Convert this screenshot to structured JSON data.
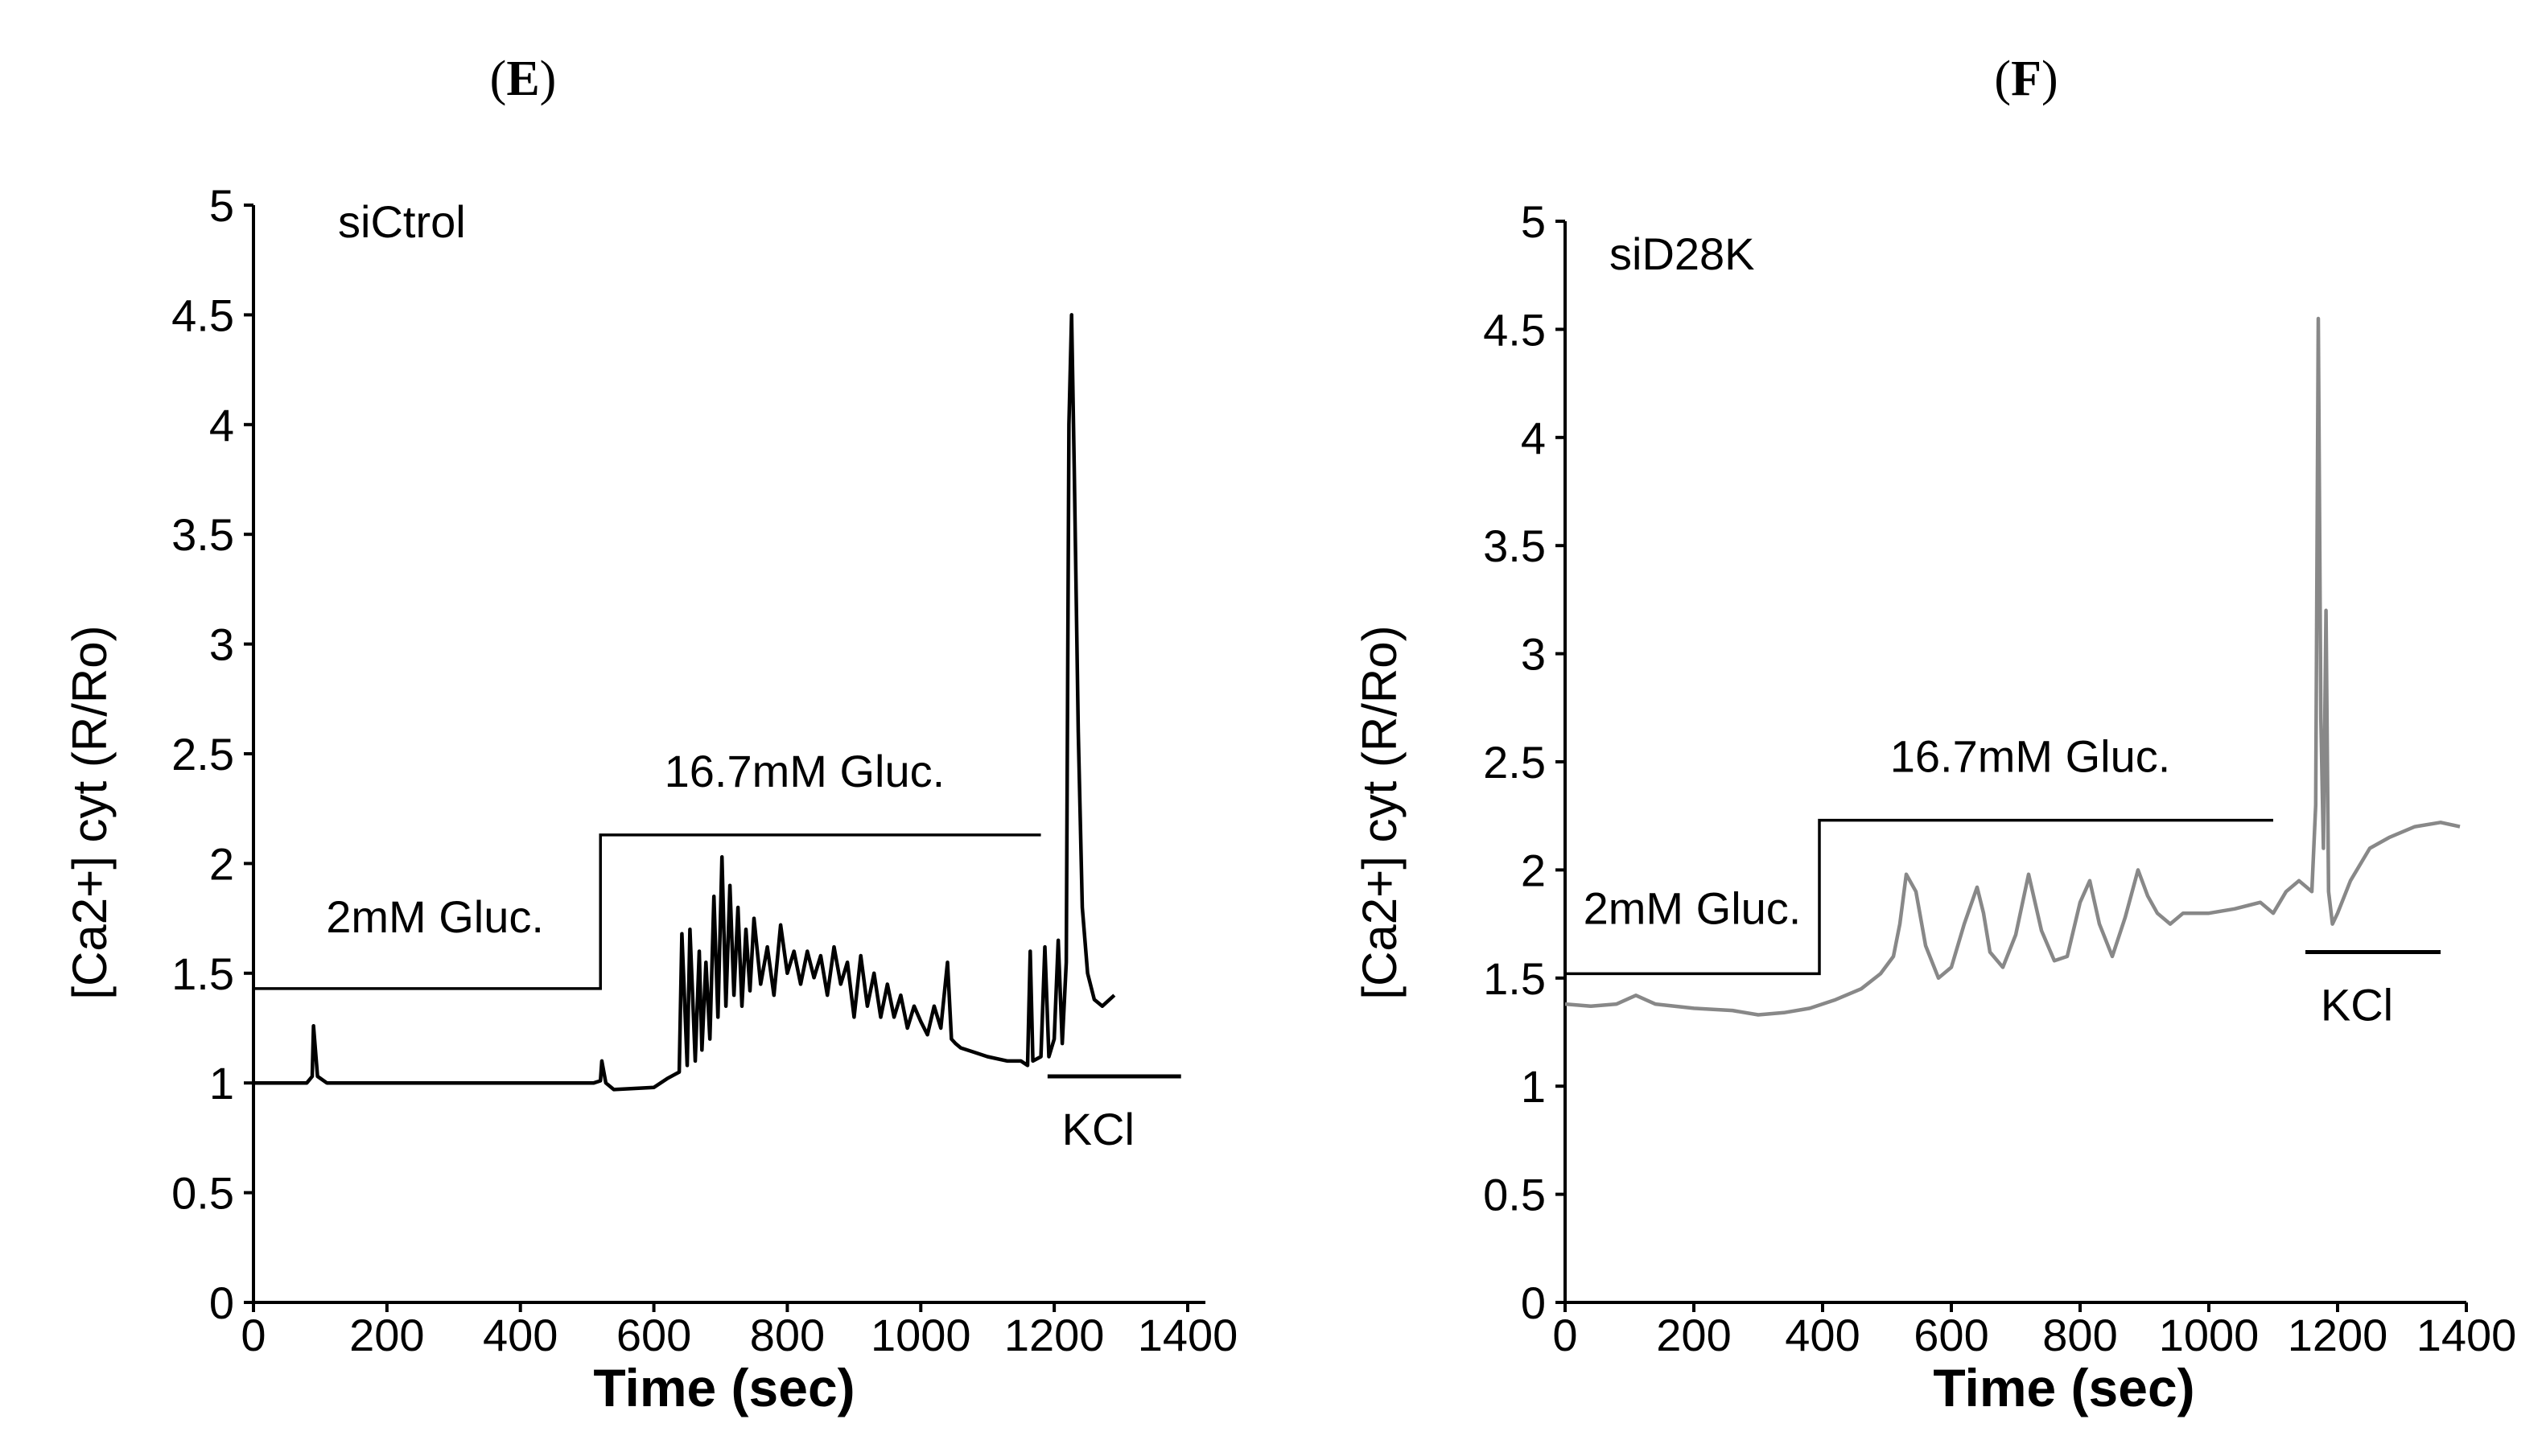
{
  "chart_data": [
    {
      "panel_label": "E",
      "type": "line",
      "title": "siCtrol",
      "xlabel": "Time (sec)",
      "ylabel": "[Ca2+] cyt (R/Ro)",
      "xlim": [
        0,
        1400
      ],
      "ylim": [
        0,
        5
      ],
      "x_ticks": [
        0,
        200,
        400,
        600,
        800,
        1000,
        1200,
        1400
      ],
      "x_tick_labels": [
        "0",
        "200",
        "400",
        "600",
        "800",
        "1000",
        "1200",
        "1400"
      ],
      "y_ticks": [
        0,
        0.5,
        1,
        1.5,
        2,
        2.5,
        3,
        3.5,
        4,
        4.5,
        5
      ],
      "y_tick_labels": [
        "0",
        "0.5",
        "1",
        "1.5",
        "2",
        "2.5",
        "3",
        "3.5",
        "4",
        "4.5",
        "5"
      ],
      "line_color": "#000000",
      "series": [
        {
          "name": "siCtrol",
          "x": [
            0,
            80,
            88,
            90,
            96,
            110,
            300,
            510,
            520,
            522,
            528,
            540,
            600,
            620,
            638,
            642,
            650,
            654,
            662,
            668,
            672,
            678,
            684,
            690,
            696,
            702,
            708,
            714,
            720,
            726,
            732,
            738,
            744,
            750,
            760,
            770,
            780,
            790,
            800,
            810,
            820,
            830,
            840,
            850,
            860,
            870,
            880,
            890,
            900,
            910,
            920,
            930,
            940,
            950,
            960,
            970,
            980,
            990,
            1000,
            1010,
            1020,
            1030,
            1040,
            1046,
            1052,
            1060,
            1080,
            1100,
            1130,
            1150,
            1160,
            1164,
            1168,
            1180,
            1186,
            1192,
            1200,
            1206,
            1212,
            1218,
            1222,
            1226,
            1230,
            1236,
            1242,
            1250,
            1260,
            1272,
            1290
          ],
          "values": [
            1.0,
            1.0,
            1.03,
            1.26,
            1.03,
            1.0,
            1.0,
            1.0,
            1.01,
            1.1,
            1.0,
            0.97,
            0.98,
            1.02,
            1.05,
            1.68,
            1.08,
            1.7,
            1.1,
            1.6,
            1.15,
            1.55,
            1.2,
            1.85,
            1.3,
            2.03,
            1.35,
            1.9,
            1.4,
            1.8,
            1.35,
            1.7,
            1.42,
            1.75,
            1.45,
            1.62,
            1.4,
            1.72,
            1.5,
            1.6,
            1.45,
            1.6,
            1.48,
            1.58,
            1.4,
            1.62,
            1.45,
            1.55,
            1.3,
            1.58,
            1.35,
            1.5,
            1.3,
            1.45,
            1.3,
            1.4,
            1.25,
            1.35,
            1.28,
            1.22,
            1.35,
            1.25,
            1.55,
            1.2,
            1.18,
            1.16,
            1.14,
            1.12,
            1.1,
            1.1,
            1.08,
            1.6,
            1.1,
            1.12,
            1.62,
            1.12,
            1.2,
            1.65,
            1.18,
            1.55,
            4.0,
            4.5,
            3.8,
            2.6,
            1.8,
            1.5,
            1.38,
            1.35,
            1.4
          ]
        }
      ],
      "annotations": [
        {
          "text": "2mM Gluc.",
          "x_range": [
            0,
            520
          ],
          "level": 1.43
        },
        {
          "text": "16.7mM Gluc.",
          "x_range": [
            520,
            1180
          ],
          "level": 2.13
        },
        {
          "text": "KCl",
          "x_range": [
            1190,
            1390
          ],
          "level": 1.03
        }
      ]
    },
    {
      "panel_label": "F",
      "type": "line",
      "title": "siD28K",
      "xlabel": "Time (sec)",
      "ylabel": "[Ca2+] cyt (R/Ro)",
      "xlim": [
        0,
        1400
      ],
      "ylim": [
        0,
        5
      ],
      "x_ticks": [
        0,
        200,
        400,
        600,
        800,
        1000,
        1200,
        1400
      ],
      "x_tick_labels": [
        "0",
        "200",
        "400",
        "600",
        "800",
        "1000",
        "1200",
        "1400"
      ],
      "y_ticks": [
        0,
        0.5,
        1,
        1.5,
        2,
        2.5,
        3,
        3.5,
        4,
        4.5,
        5
      ],
      "y_tick_labels": [
        "0",
        "0.5",
        "1",
        "1.5",
        "2",
        "2.5",
        "3",
        "3.5",
        "4",
        "4.5",
        "5"
      ],
      "line_color": "#888888",
      "series": [
        {
          "name": "siD28K",
          "x": [
            0,
            40,
            80,
            110,
            140,
            200,
            260,
            300,
            340,
            380,
            420,
            460,
            490,
            510,
            520,
            530,
            545,
            560,
            580,
            600,
            620,
            640,
            650,
            660,
            680,
            700,
            720,
            730,
            740,
            760,
            780,
            800,
            815,
            830,
            850,
            870,
            890,
            905,
            920,
            940,
            960,
            1000,
            1040,
            1080,
            1100,
            1120,
            1140,
            1160,
            1166,
            1170,
            1174,
            1178,
            1182,
            1186,
            1192,
            1200,
            1220,
            1250,
            1280,
            1320,
            1360,
            1390
          ],
          "values": [
            1.38,
            1.37,
            1.38,
            1.42,
            1.38,
            1.36,
            1.35,
            1.33,
            1.34,
            1.36,
            1.4,
            1.45,
            1.52,
            1.6,
            1.75,
            1.98,
            1.9,
            1.65,
            1.5,
            1.55,
            1.75,
            1.92,
            1.8,
            1.62,
            1.55,
            1.7,
            1.98,
            1.85,
            1.72,
            1.58,
            1.6,
            1.85,
            1.95,
            1.75,
            1.6,
            1.78,
            2.0,
            1.88,
            1.8,
            1.75,
            1.8,
            1.8,
            1.82,
            1.85,
            1.8,
            1.9,
            1.95,
            1.9,
            2.3,
            4.55,
            2.7,
            2.1,
            3.2,
            1.9,
            1.75,
            1.8,
            1.95,
            2.1,
            2.15,
            2.2,
            2.22,
            2.2
          ]
        }
      ],
      "annotations": [
        {
          "text": "2mM Gluc.",
          "x_range": [
            0,
            395
          ],
          "level": 1.52
        },
        {
          "text": "16.7mM Gluc.",
          "x_range": [
            395,
            1100
          ],
          "level": 2.23
        },
        {
          "text": "KCl",
          "x_range": [
            1150,
            1360
          ],
          "level": 1.62
        }
      ]
    }
  ]
}
